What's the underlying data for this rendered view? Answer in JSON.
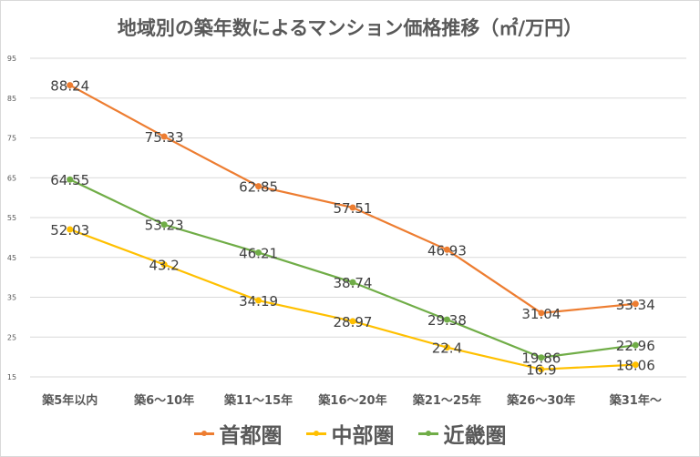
{
  "chart_data": {
    "type": "line",
    "title": "地域別の築年数によるマンション価格推移（㎡/万円）",
    "categories": [
      "築5年以内",
      "築6〜10年",
      "築11〜15年",
      "築16〜20年",
      "築21〜25年",
      "築26〜30年",
      "築31年〜"
    ],
    "ylim": [
      15,
      95
    ],
    "yticks": [
      15,
      25,
      35,
      45,
      55,
      65,
      75,
      85,
      95
    ],
    "grid": true,
    "legend_position": "bottom",
    "series": [
      {
        "name": "首都圏",
        "color": "#ED7D31",
        "values": [
          88.24,
          75.33,
          62.85,
          57.51,
          46.93,
          31.04,
          33.34
        ]
      },
      {
        "name": "中部圏",
        "color": "#FFC000",
        "values": [
          52.03,
          43.2,
          34.19,
          28.97,
          22.4,
          16.9,
          18.06
        ]
      },
      {
        "name": "近畿圏",
        "color": "#70AD47",
        "values": [
          64.55,
          53.23,
          46.21,
          38.74,
          29.38,
          19.86,
          22.96
        ]
      }
    ]
  }
}
